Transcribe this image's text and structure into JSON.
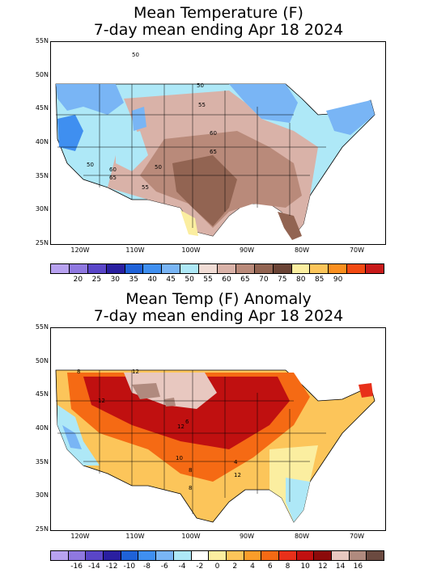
{
  "panel1": {
    "title_line1": "Mean Temperature (F)",
    "title_line2": "7-day mean ending Apr 18 2024",
    "lat_labels": [
      "55N",
      "50N",
      "45N",
      "40N",
      "35N",
      "30N",
      "25N"
    ],
    "lon_labels": [
      "120W",
      "110W",
      "100W",
      "90W",
      "80W",
      "70W"
    ],
    "contour_labels": [
      "50",
      "55",
      "60",
      "65",
      "50",
      "50",
      "60",
      "65",
      "55",
      "50"
    ],
    "colorbar_colors": [
      "#b8a2f0",
      "#8f78e0",
      "#5a46c8",
      "#2a1fa0",
      "#1f62d8",
      "#3f8ff0",
      "#79b5f5",
      "#aee8f7",
      "#f0dcd5",
      "#d9b2a8",
      "#b98a7a",
      "#926452",
      "#6b4436",
      "#fbeea0",
      "#fcc55a",
      "#fa8f1f",
      "#f24a12",
      "#c81a1a"
    ],
    "colorbar_labels": [
      "20",
      "25",
      "30",
      "35",
      "40",
      "45",
      "50",
      "55",
      "60",
      "65",
      "70",
      "75",
      "80",
      "85",
      "90"
    ]
  },
  "panel2": {
    "title_line1": "Mean Temp (F) Anomaly",
    "title_line2": "7-day mean ending Apr 18 2024",
    "lat_labels": [
      "55N",
      "50N",
      "45N",
      "40N",
      "35N",
      "30N",
      "25N"
    ],
    "lon_labels": [
      "120W",
      "110W",
      "100W",
      "90W",
      "80W",
      "70W"
    ],
    "contour_labels": [
      "12",
      "8",
      "12",
      "12",
      "8",
      "10",
      "8",
      "4",
      "12",
      "6"
    ],
    "colorbar_colors": [
      "#b8a2f0",
      "#8f78e0",
      "#5a46c8",
      "#2a1fa0",
      "#1f62d8",
      "#3f8ff0",
      "#79b5f5",
      "#aee8f7",
      "#ffffff",
      "#fbeea0",
      "#fcc55a",
      "#fa9d2a",
      "#f56a14",
      "#e8301a",
      "#c01010",
      "#8c0a0a",
      "#e8c8c0",
      "#b08a7e",
      "#6b4a40"
    ],
    "colorbar_labels": [
      "-16",
      "-14",
      "-12",
      "-10",
      "-8",
      "-6",
      "-4",
      "-2",
      "0",
      "2",
      "4",
      "6",
      "8",
      "10",
      "12",
      "14",
      "16"
    ]
  }
}
